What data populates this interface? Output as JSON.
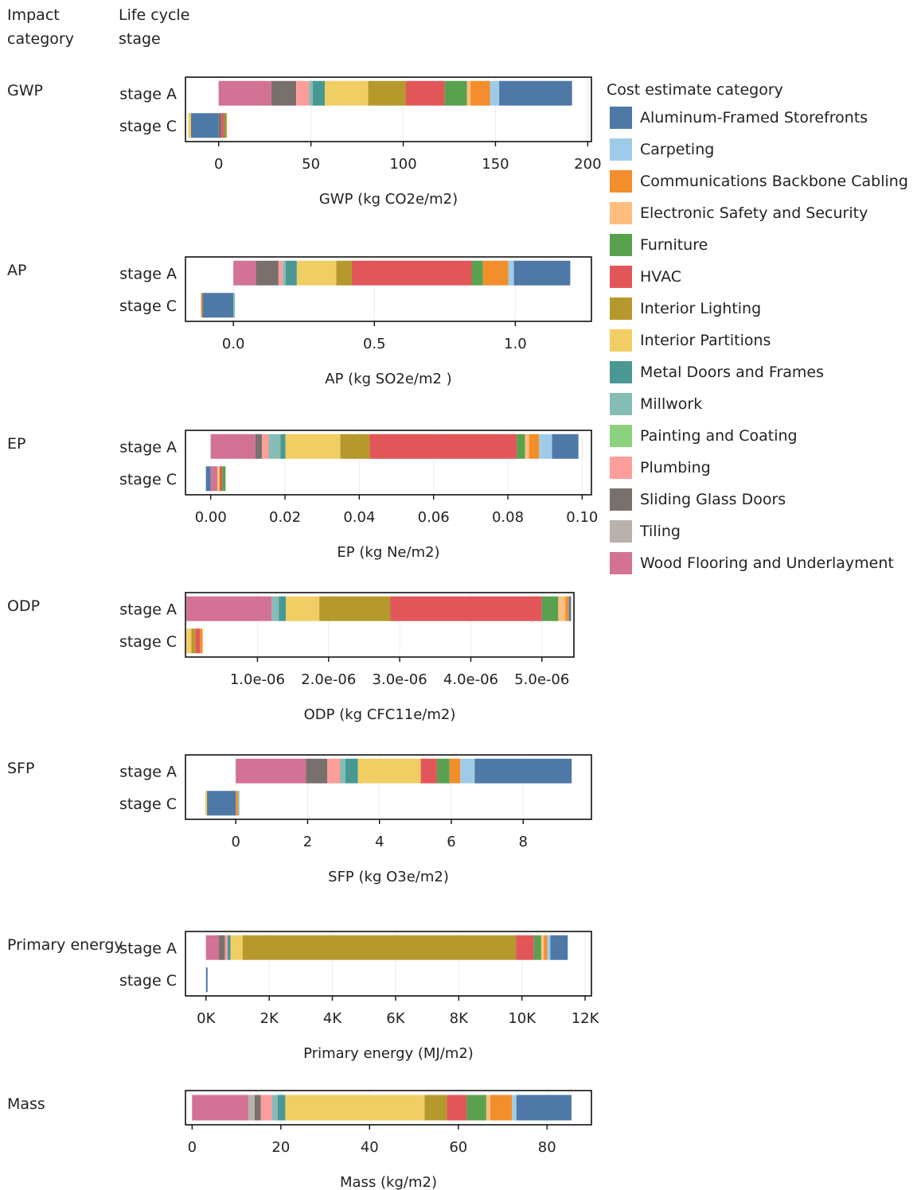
{
  "headers": {
    "impact": [
      "Impact",
      "category"
    ],
    "stage": [
      "Life cycle",
      "stage"
    ]
  },
  "legend": {
    "title": "Cost estimate category",
    "items": [
      {
        "label": "Aluminum-Framed Storefronts",
        "color": "#4e79a7"
      },
      {
        "label": "Carpeting",
        "color": "#a0cbe8"
      },
      {
        "label": "Communications Backbone Cabling",
        "color": "#f28e2b"
      },
      {
        "label": "Electronic Safety and Security",
        "color": "#ffbe7d"
      },
      {
        "label": "Furniture",
        "color": "#59a14f"
      },
      {
        "label": "HVAC",
        "color": "#e15759"
      },
      {
        "label": "Interior Lighting",
        "color": "#b6992d"
      },
      {
        "label": "Interior Partitions",
        "color": "#f1ce63"
      },
      {
        "label": "Metal Doors and Frames",
        "color": "#499894"
      },
      {
        "label": "Millwork",
        "color": "#86bcb6"
      },
      {
        "label": "Painting and Coating",
        "color": "#8cd17d"
      },
      {
        "label": "Plumbing",
        "color": "#ff9d9a"
      },
      {
        "label": "Sliding Glass Doors",
        "color": "#79706e"
      },
      {
        "label": "Tiling",
        "color": "#bab0ac"
      },
      {
        "label": "Wood Flooring and Underlayment",
        "color": "#d37295"
      }
    ]
  },
  "chart_data": [
    {
      "type": "bar",
      "orientation": "horizontal",
      "stacked": true,
      "impact": "GWP",
      "xlabel": "GWP (kg CO2e/m2)",
      "xlim": [
        -18,
        202
      ],
      "ticks": [
        0,
        50,
        100,
        150,
        200
      ],
      "tick_labels": [
        "0",
        "50",
        "100",
        "150",
        "200"
      ],
      "rows": [
        {
          "label": "stage A",
          "segments": [
            {
              "category": "Wood Flooring and Underlayment",
              "value": 28.5
            },
            {
              "category": "Sliding Glass Doors",
              "value": 13.5
            },
            {
              "category": "Plumbing",
              "value": 7
            },
            {
              "category": "Millwork",
              "value": 2
            },
            {
              "category": "Metal Doors and Frames",
              "value": 6.5
            },
            {
              "category": "Interior Partitions",
              "value": 23.5
            },
            {
              "category": "Interior Lighting",
              "value": 20.5
            },
            {
              "category": "HVAC",
              "value": 21
            },
            {
              "category": "Furniture",
              "value": 12
            },
            {
              "category": "Electronic Safety and Security",
              "value": 2
            },
            {
              "category": "Communications Backbone Cabling",
              "value": 10.5
            },
            {
              "category": "Carpeting",
              "value": 5
            },
            {
              "category": "Aluminum-Framed Storefronts",
              "value": 39.5
            }
          ]
        },
        {
          "label": "stage C",
          "segments": [
            {
              "category": "Aluminum-Framed Storefronts",
              "value": -15
            },
            {
              "category": "Interior Partitions",
              "value": -1.5
            },
            {
              "category": "Sliding Glass Doors",
              "value": 1.5
            },
            {
              "category": "HVAC",
              "value": 1.5
            },
            {
              "category": "Furniture",
              "value": 0.8
            },
            {
              "category": "Communications Backbone Cabling",
              "value": 0.7
            }
          ]
        }
      ]
    },
    {
      "type": "bar",
      "orientation": "horizontal",
      "stacked": true,
      "impact": "AP",
      "xlabel": "AP (kg SO2e/m2 )",
      "xlim": [
        -0.17,
        1.27
      ],
      "ticks": [
        0,
        0.5,
        1.0
      ],
      "tick_labels": [
        "0.0",
        "0.5",
        "1.0"
      ],
      "rows": [
        {
          "label": "stage A",
          "segments": [
            {
              "category": "Wood Flooring and Underlayment",
              "value": 0.08
            },
            {
              "category": "Sliding Glass Doors",
              "value": 0.08
            },
            {
              "category": "Plumbing",
              "value": 0.015
            },
            {
              "category": "Millwork",
              "value": 0.01
            },
            {
              "category": "Metal Doors and Frames",
              "value": 0.04
            },
            {
              "category": "Interior Partitions",
              "value": 0.14
            },
            {
              "category": "Interior Lighting",
              "value": 0.055
            },
            {
              "category": "HVAC",
              "value": 0.425
            },
            {
              "category": "Furniture",
              "value": 0.04
            },
            {
              "category": "Communications Backbone Cabling",
              "value": 0.09
            },
            {
              "category": "Carpeting",
              "value": 0.02
            },
            {
              "category": "Aluminum-Framed Storefronts",
              "value": 0.2
            }
          ]
        },
        {
          "label": "stage C",
          "segments": [
            {
              "category": "Aluminum-Framed Storefronts",
              "value": -0.11
            },
            {
              "category": "Communications Backbone Cabling",
              "value": -0.005
            },
            {
              "category": "Millwork",
              "value": 0.005
            }
          ]
        }
      ]
    },
    {
      "type": "bar",
      "orientation": "horizontal",
      "stacked": true,
      "impact": "EP",
      "xlabel": "EP (kg Ne/m2)",
      "xlim": [
        -0.0068,
        0.1025
      ],
      "ticks": [
        0,
        0.02,
        0.04,
        0.06,
        0.08,
        0.1
      ],
      "tick_labels": [
        "0.00",
        "0.02",
        "0.04",
        "0.06",
        "0.08",
        "0.10"
      ],
      "rows": [
        {
          "label": "stage A",
          "segments": [
            {
              "category": "Wood Flooring and Underlayment",
              "value": 0.012
            },
            {
              "category": "Sliding Glass Doors",
              "value": 0.0018
            },
            {
              "category": "Plumbing",
              "value": 0.0018
            },
            {
              "category": "Millwork",
              "value": 0.0032
            },
            {
              "category": "Metal Doors and Frames",
              "value": 0.0013
            },
            {
              "category": "Interior Partitions",
              "value": 0.0148
            },
            {
              "category": "Interior Lighting",
              "value": 0.0079
            },
            {
              "category": "HVAC",
              "value": 0.0396
            },
            {
              "category": "Furniture",
              "value": 0.0022
            },
            {
              "category": "Electronic Safety and Security",
              "value": 0.0011
            },
            {
              "category": "Communications Backbone Cabling",
              "value": 0.0027
            },
            {
              "category": "Carpeting",
              "value": 0.0035
            },
            {
              "category": "Aluminum-Framed Storefronts",
              "value": 0.0071
            }
          ]
        },
        {
          "label": "stage C",
          "segments": [
            {
              "category": "Aluminum-Framed Storefronts",
              "value": -0.0013
            },
            {
              "category": "Wood Flooring and Underlayment",
              "value": 0.0018
            },
            {
              "category": "Interior Partitions",
              "value": 0.0006
            },
            {
              "category": "HVAC",
              "value": 0.0007
            },
            {
              "category": "Furniture",
              "value": 0.0009
            }
          ]
        }
      ]
    },
    {
      "type": "bar",
      "orientation": "horizontal",
      "stacked": true,
      "impact": "ODP",
      "xlabel": "ODP (kg CFC11e/m2)",
      "xlim": [
        -1.2e-08,
        5.45e-06
      ],
      "ticks": [
        1e-06,
        2e-06,
        3e-06,
        4e-06,
        5e-06
      ],
      "tick_labels": [
        "1.0e-06",
        "2.0e-06",
        "3.0e-06",
        "4.0e-06",
        "5.0e-06"
      ],
      "rows": [
        {
          "label": "stage A",
          "segments": [
            {
              "category": "Wood Flooring and Underlayment",
              "value": 1.2e-06
            },
            {
              "category": "Millwork",
              "value": 1e-07
            },
            {
              "category": "Metal Doors and Frames",
              "value": 1e-07
            },
            {
              "category": "Interior Partitions",
              "value": 4.7e-07
            },
            {
              "category": "Interior Lighting",
              "value": 1e-06
            },
            {
              "category": "HVAC",
              "value": 2.13e-06
            },
            {
              "category": "Furniture",
              "value": 2.3e-07
            },
            {
              "category": "Electronic Safety and Security",
              "value": 1e-07
            },
            {
              "category": "Communications Backbone Cabling",
              "value": 5e-08
            },
            {
              "category": "Aluminum-Framed Storefronts",
              "value": 3e-08
            }
          ]
        },
        {
          "label": "stage C",
          "segments": [
            {
              "category": "Interior Partitions",
              "value": 7e-08
            },
            {
              "category": "Interior Lighting",
              "value": 6e-08
            },
            {
              "category": "HVAC",
              "value": 6e-08
            },
            {
              "category": "Communications Backbone Cabling",
              "value": 4e-08
            }
          ]
        }
      ]
    },
    {
      "type": "bar",
      "orientation": "horizontal",
      "stacked": true,
      "impact": "SFP",
      "xlabel": "SFP (kg O3e/m2)",
      "xlim": [
        -1.4,
        9.9
      ],
      "ticks": [
        0,
        2,
        4,
        6,
        8
      ],
      "tick_labels": [
        "0",
        "2",
        "4",
        "6",
        "8"
      ],
      "rows": [
        {
          "label": "stage A",
          "segments": [
            {
              "category": "Wood Flooring and Underlayment",
              "value": 1.95
            },
            {
              "category": "Sliding Glass Doors",
              "value": 0.6
            },
            {
              "category": "Plumbing",
              "value": 0.35
            },
            {
              "category": "Millwork",
              "value": 0.15
            },
            {
              "category": "Metal Doors and Frames",
              "value": 0.35
            },
            {
              "category": "Interior Partitions",
              "value": 1.75
            },
            {
              "category": "HVAC",
              "value": 0.45
            },
            {
              "category": "Furniture",
              "value": 0.35
            },
            {
              "category": "Communications Backbone Cabling",
              "value": 0.3
            },
            {
              "category": "Carpeting",
              "value": 0.4
            },
            {
              "category": "Aluminum-Framed Storefronts",
              "value": 2.7
            }
          ]
        },
        {
          "label": "stage C",
          "segments": [
            {
              "category": "Aluminum-Framed Storefronts",
              "value": -0.8
            },
            {
              "category": "Interior Partitions",
              "value": -0.05
            },
            {
              "category": "Communications Backbone Cabling",
              "value": 0.06
            },
            {
              "category": "Millwork",
              "value": 0.04
            }
          ]
        }
      ]
    },
    {
      "type": "bar",
      "orientation": "horizontal",
      "stacked": true,
      "impact": "Primary energy",
      "xlabel": "Primary energy (MJ/m2)",
      "xlim": [
        -650,
        12200
      ],
      "ticks": [
        0,
        2000,
        4000,
        6000,
        8000,
        10000,
        12000
      ],
      "tick_labels": [
        "0K",
        "2K",
        "4K",
        "6K",
        "8K",
        "10K",
        "12K"
      ],
      "rows": [
        {
          "label": "stage A",
          "segments": [
            {
              "category": "Wood Flooring and Underlayment",
              "value": 400
            },
            {
              "category": "Sliding Glass Doors",
              "value": 200
            },
            {
              "category": "Plumbing",
              "value": 80
            },
            {
              "category": "Metal Doors and Frames",
              "value": 100
            },
            {
              "category": "Interior Partitions",
              "value": 380
            },
            {
              "category": "Interior Lighting",
              "value": 8650
            },
            {
              "category": "HVAC",
              "value": 570
            },
            {
              "category": "Furniture",
              "value": 230
            },
            {
              "category": "Electronic Safety and Security",
              "value": 90
            },
            {
              "category": "Communications Backbone Cabling",
              "value": 100
            },
            {
              "category": "Carpeting",
              "value": 100
            },
            {
              "category": "Aluminum-Framed Storefronts",
              "value": 550
            }
          ]
        },
        {
          "label": "stage C",
          "segments": [
            {
              "category": "Aluminum-Framed Storefronts",
              "value": 50
            }
          ]
        }
      ]
    },
    {
      "type": "bar",
      "orientation": "horizontal",
      "stacked": true,
      "impact": "Mass",
      "xlabel": "Mass (kg/m2)",
      "xlim": [
        -1.5,
        90
      ],
      "ticks": [
        0,
        20,
        40,
        60,
        80
      ],
      "tick_labels": [
        "0",
        "20",
        "40",
        "60",
        "80"
      ],
      "rows": [
        {
          "label": "",
          "segments": [
            {
              "category": "Wood Flooring and Underlayment",
              "value": 12.7
            },
            {
              "category": "Tiling",
              "value": 1.4
            },
            {
              "category": "Sliding Glass Doors",
              "value": 1.4
            },
            {
              "category": "Plumbing",
              "value": 2.5
            },
            {
              "category": "Millwork",
              "value": 1.3
            },
            {
              "category": "Metal Doors and Frames",
              "value": 1.7
            },
            {
              "category": "Interior Partitions",
              "value": 31.4
            },
            {
              "category": "Interior Lighting",
              "value": 5
            },
            {
              "category": "HVAC",
              "value": 4.5
            },
            {
              "category": "Furniture",
              "value": 4.4
            },
            {
              "category": "Electronic Safety and Security",
              "value": 0.9
            },
            {
              "category": "Communications Backbone Cabling",
              "value": 4.9
            },
            {
              "category": "Carpeting",
              "value": 1
            },
            {
              "category": "Aluminum-Framed Storefronts",
              "value": 12.4
            }
          ]
        }
      ]
    }
  ]
}
